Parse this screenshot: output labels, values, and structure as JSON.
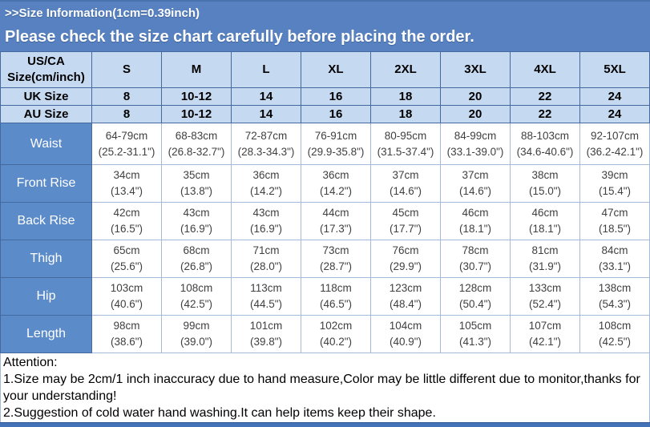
{
  "banner": {
    "title": ">>Size Information(1cm=0.39inch)",
    "subtitle": "Please check the size chart carefully before placing the order."
  },
  "table": {
    "corner_line1": "US/CA",
    "corner_line2": "Size(cm/inch)",
    "size_columns": [
      "S",
      "M",
      "L",
      "XL",
      "2XL",
      "3XL",
      "4XL",
      "5XL"
    ],
    "simple_rows": [
      {
        "label": "UK Size",
        "values": [
          "8",
          "10-12",
          "14",
          "16",
          "18",
          "20",
          "22",
          "24"
        ]
      },
      {
        "label": "AU Size",
        "values": [
          "8",
          "10-12",
          "14",
          "16",
          "18",
          "20",
          "22",
          "24"
        ]
      }
    ],
    "measure_rows": [
      {
        "label": "Waist",
        "cm": [
          "64-79cm",
          "68-83cm",
          "72-87cm",
          "76-91cm",
          "80-95cm",
          "84-99cm",
          "88-103cm",
          "92-107cm"
        ],
        "inch": [
          "(25.2-31.1\")",
          "(26.8-32.7\")",
          "(28.3-34.3\")",
          "(29.9-35.8\")",
          "(31.5-37.4\")",
          "(33.1-39.0\")",
          "(34.6-40.6\")",
          "(36.2-42.1\")"
        ]
      },
      {
        "label": "Front Rise",
        "cm": [
          "34cm",
          "35cm",
          "36cm",
          "36cm",
          "37cm",
          "37cm",
          "38cm",
          "39cm"
        ],
        "inch": [
          "(13.4\")",
          "(13.8\")",
          "(14.2\")",
          "(14.2\")",
          "(14.6\")",
          "(14.6\")",
          "(15.0\")",
          "(15.4\")"
        ]
      },
      {
        "label": "Back Rise",
        "cm": [
          "42cm",
          "43cm",
          "43cm",
          "44cm",
          "45cm",
          "46cm",
          "46cm",
          "47cm"
        ],
        "inch": [
          "(16.5\")",
          "(16.9\")",
          "(16.9\")",
          "(17.3\")",
          "(17.7\")",
          "(18.1\")",
          "(18.1\")",
          "(18.5\")"
        ]
      },
      {
        "label": "Thigh",
        "cm": [
          "65cm",
          "68cm",
          "71cm",
          "73cm",
          "76cm",
          "78cm",
          "81cm",
          "84cm"
        ],
        "inch": [
          "(25.6\")",
          "(26.8\")",
          "(28.0\")",
          "(28.7\")",
          "(29.9\")",
          "(30.7\")",
          "(31.9\")",
          "(33.1\")"
        ]
      },
      {
        "label": "Hip",
        "cm": [
          "103cm",
          "108cm",
          "113cm",
          "118cm",
          "123cm",
          "128cm",
          "133cm",
          "138cm"
        ],
        "inch": [
          "(40.6\")",
          "(42.5\")",
          "(44.5\")",
          "(46.5\")",
          "(48.4\")",
          "(50.4\")",
          "(52.4\")",
          "(54.3\")"
        ]
      },
      {
        "label": "Length",
        "cm": [
          "98cm",
          "99cm",
          "101cm",
          "102cm",
          "104cm",
          "105cm",
          "107cm",
          "108cm"
        ],
        "inch": [
          "(38.6\")",
          "(39.0\")",
          "(39.8\")",
          "(40.2\")",
          "(40.9\")",
          "(41.3\")",
          "(42.1\")",
          "(42.5\")"
        ]
      }
    ]
  },
  "attention": {
    "title": "Attention:",
    "lines": [
      "1.Size may be 2cm/1 inch inaccuracy due to hand measure,Color may be little different due to monitor,thanks for your understanding!",
      "2.Suggestion of cold water hand washing.It can help items keep their shape."
    ]
  },
  "colors": {
    "banner_bg": "#5781C0",
    "banner_text": "#FFFFFF",
    "header_row_bg": "#C5D9F1",
    "label_cell_bg": "#5B8BC9",
    "label_cell_text": "#FFFFFF",
    "grid_border": "#44699F",
    "light_border": "#A3BBD9",
    "cell_text": "#404040",
    "bottom_strip": "#4472B8"
  }
}
